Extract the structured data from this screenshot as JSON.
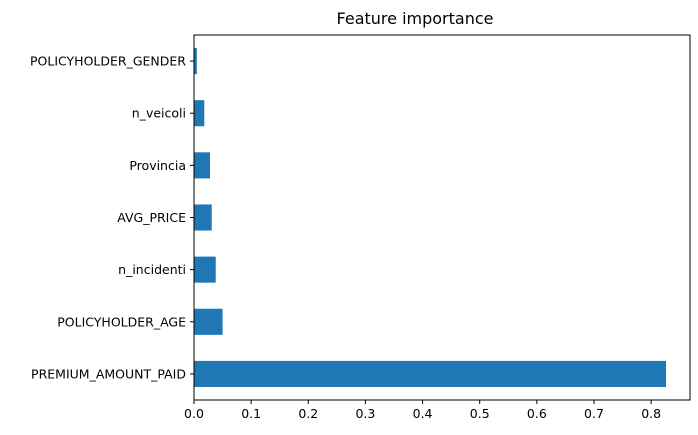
{
  "chart_data": {
    "type": "bar",
    "orientation": "horizontal",
    "title": "Feature importance",
    "xlabel": "",
    "ylabel": "",
    "categories": [
      "PREMIUM_AMOUNT_PAID",
      "POLICYHOLDER_AGE",
      "n_incidenti",
      "AVG_PRICE",
      "Provincia",
      "n_veicoli",
      "POLICYHOLDER_GENDER"
    ],
    "values": [
      0.826,
      0.05,
      0.038,
      0.031,
      0.028,
      0.018,
      0.005
    ],
    "xlim": [
      0,
      0.868
    ],
    "xticks": [
      "0.0",
      "0.1",
      "0.2",
      "0.3",
      "0.4",
      "0.5",
      "0.6",
      "0.7",
      "0.8"
    ],
    "bar_color": "#1f77b4",
    "grid": false,
    "legend": "none"
  }
}
